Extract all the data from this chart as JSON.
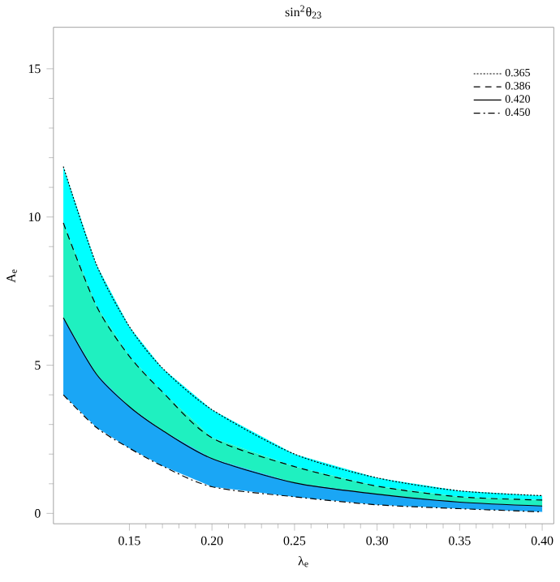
{
  "chart_data": {
    "type": "area",
    "title": "sin$^{2}$θ$_{23}$",
    "xlabel": "λ$_{e}$",
    "ylabel": "A$_{e}$",
    "x": [
      0.11,
      0.13,
      0.15,
      0.17,
      0.2,
      0.25,
      0.3,
      0.35,
      0.4
    ],
    "series": [
      {
        "name": "0.365",
        "color": "#00ffff",
        "line_style": "dotted",
        "values": [
          11.7,
          8.4,
          6.3,
          4.9,
          3.5,
          2.0,
          1.2,
          0.76,
          0.6
        ]
      },
      {
        "name": "0.386",
        "color": "#1ff0c0",
        "line_style": "dashed",
        "values": [
          9.8,
          7.0,
          5.3,
          4.1,
          2.55,
          1.58,
          0.92,
          0.56,
          0.45
        ]
      },
      {
        "name": "0.420",
        "color": "#1aa6f5",
        "line_style": "solid",
        "values": [
          6.6,
          4.7,
          3.6,
          2.8,
          1.85,
          1.03,
          0.65,
          0.38,
          0.25
        ]
      },
      {
        "name": "0.450",
        "type": "line",
        "color": "#000000",
        "line_style": "dashdot",
        "values": [
          4.0,
          2.9,
          2.2,
          1.6,
          0.9,
          0.56,
          0.29,
          0.16,
          0.05
        ]
      }
    ],
    "xlim": [
      0.104,
      0.407
    ],
    "ylim": [
      -0.35,
      16.4
    ],
    "xticks": [
      0.15,
      {
        "value": 0.2,
        "label": "0.20"
      },
      0.25,
      {
        "value": 0.3,
        "label": "0.30"
      },
      0.35,
      {
        "value": 0.4,
        "label": "0.40"
      }
    ],
    "yticks": [
      0,
      5,
      10,
      15
    ],
    "legend": "top right",
    "grid": false
  }
}
